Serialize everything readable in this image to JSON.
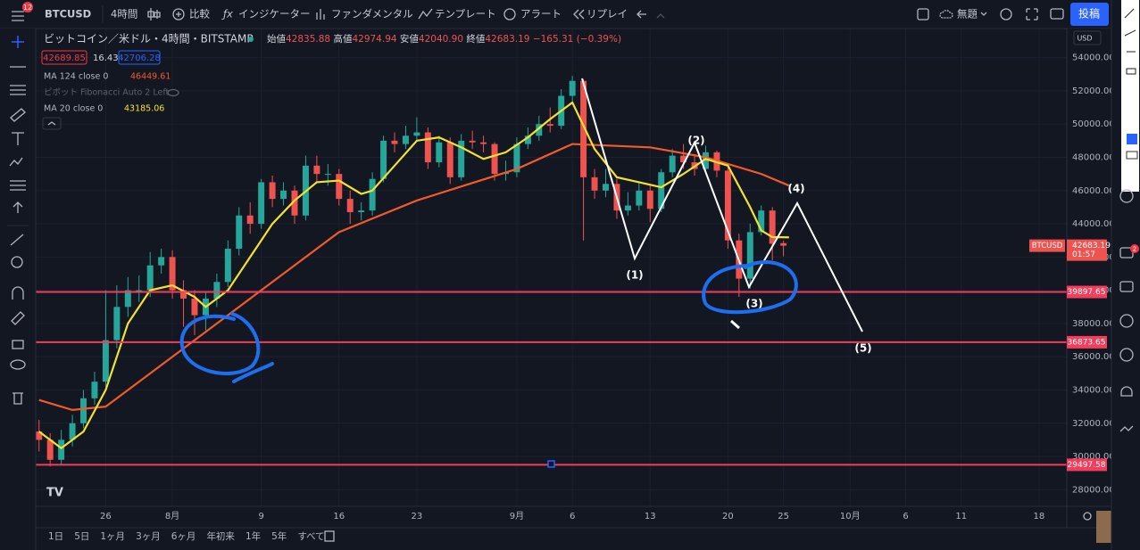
{
  "toolbar": {
    "badge": "12",
    "symbol": "BTCUSD",
    "interval": "4時間",
    "compare": "比較",
    "indicators": "インジケーター",
    "fundamentals": "ファンダメンタル",
    "templates": "テンプレート",
    "alert": "アラート",
    "replay": "リプレイ",
    "layout_name": "無題",
    "publish": "投稿"
  },
  "legend": {
    "title": "ビットコイン／米ドル・4時間・BITSTAMP",
    "ohlc": [
      {
        "label": "始値",
        "value": "42835.88"
      },
      {
        "label": "高値",
        "value": "42974.94"
      },
      {
        "label": "安値",
        "value": "42040.90"
      },
      {
        "label": "終値",
        "value": "42683.19"
      }
    ],
    "change": "−165.31 (−0.39%)",
    "bid": "42689.85",
    "spread": "16.43",
    "ask": "42706.28",
    "ma124_value": "46449.61",
    "pivot": "ピボット Fibonacci Auto 2 Left",
    "ma20_value": "43185.06"
  },
  "currency": "USD",
  "notification_badge": "2",
  "range_buttons": [
    "1日",
    "5日",
    "1ヶ月",
    "3ヶ月",
    "6ヶ月",
    "年初来",
    "1年",
    "5年",
    "すべて"
  ],
  "chart_data": {
    "type": "candlestick",
    "x": [
      20,
      21,
      22,
      23,
      24,
      25,
      26,
      27,
      28,
      29,
      30,
      31,
      32,
      33,
      34,
      35,
      36,
      37,
      38,
      39,
      40,
      41,
      42,
      43,
      44,
      45,
      46,
      47,
      48,
      49,
      50,
      51,
      52,
      53,
      54,
      55,
      56,
      57,
      58,
      59,
      60,
      61,
      62,
      63,
      64,
      65,
      66,
      67,
      68,
      69,
      70,
      71,
      72,
      73,
      74,
      75,
      76,
      77,
      78,
      79,
      80,
      81,
      82,
      83,
      84,
      85,
      86,
      87
    ],
    "open": [
      31500,
      31000,
      29800,
      31000,
      32000,
      33500,
      34500,
      37000,
      39000,
      40000,
      40000,
      41500,
      42000,
      40000,
      39500,
      38500,
      39500,
      40500,
      42500,
      44500,
      44000,
      46500,
      45500,
      46000,
      44500,
      47500,
      47000,
      47000,
      45500,
      44700,
      44800,
      46700,
      49000,
      48800,
      49300,
      49500,
      47700,
      48900,
      46800,
      49000,
      48900,
      48800,
      47000,
      47100,
      48800,
      49300,
      50000,
      49900,
      51700,
      52600,
      46800,
      46000,
      46400,
      44800,
      45100,
      46000,
      44900,
      47100,
      48100,
      47700,
      47300,
      48300,
      47200,
      43000,
      40700,
      43500,
      44800,
      42835.88
    ],
    "high": [
      32200,
      31400,
      31600,
      32500,
      34000,
      35100,
      40000,
      40300,
      40800,
      40900,
      42300,
      42500,
      42400,
      40600,
      40000,
      39900,
      41000,
      43000,
      45000,
      45300,
      46700,
      46900,
      46500,
      46300,
      48100,
      48100,
      47600,
      47300,
      46000,
      45300,
      47100,
      49300,
      49500,
      49900,
      50400,
      49800,
      49300,
      49200,
      49400,
      49600,
      49300,
      48900,
      47800,
      49200,
      49800,
      50500,
      51000,
      52100,
      52900,
      52700,
      47300,
      47300,
      46700,
      45900,
      46500,
      46300,
      47300,
      48500,
      48800,
      48200,
      48700,
      48400,
      47400,
      43400,
      44000,
      45100,
      45000,
      42974.94
    ],
    "low": [
      30300,
      29400,
      29500,
      30600,
      31700,
      33100,
      34200,
      36500,
      38400,
      39300,
      39600,
      41000,
      39500,
      37800,
      37300,
      37600,
      39000,
      40200,
      42100,
      43400,
      43700,
      45000,
      45100,
      44000,
      44200,
      46500,
      46300,
      45100,
      44000,
      44200,
      44500,
      46500,
      48300,
      48500,
      49000,
      47300,
      47400,
      46400,
      46600,
      48500,
      48300,
      46600,
      46600,
      46800,
      48500,
      49000,
      49500,
      49700,
      51400,
      43000,
      45500,
      45600,
      44300,
      44500,
      44800,
      44100,
      44700,
      46800,
      47300,
      46900,
      47000,
      46800,
      42500,
      39600,
      40100,
      43300,
      41800,
      42040.9
    ],
    "close": [
      31000,
      29800,
      31000,
      32000,
      33500,
      34500,
      37000,
      39000,
      40000,
      40000,
      41500,
      42000,
      40000,
      39500,
      38500,
      39500,
      40500,
      42500,
      44500,
      44000,
      46500,
      45500,
      46000,
      44500,
      47500,
      47000,
      47000,
      45500,
      44700,
      44800,
      46700,
      49000,
      48800,
      49300,
      49500,
      47700,
      48900,
      46800,
      49000,
      48900,
      48800,
      47000,
      47100,
      48800,
      49300,
      50000,
      49900,
      51700,
      52600,
      46800,
      46000,
      46400,
      44800,
      45100,
      46000,
      44900,
      47100,
      48100,
      47700,
      47300,
      48300,
      47200,
      43000,
      40700,
      43500,
      44800,
      42800,
      42683.19
    ],
    "up_color": "#26a69a",
    "down_color": "#ef5350",
    "series": [
      {
        "name": "MA 124 close 0",
        "color": "#f05a2c",
        "x": [
          20,
          23,
          26,
          32,
          40,
          47,
          54,
          63,
          68,
          75,
          80,
          85,
          87.5
        ],
        "values": [
          33400,
          32800,
          33000,
          36000,
          40000,
          43500,
          45400,
          47300,
          48800,
          48600,
          48000,
          47000,
          46300
        ]
      },
      {
        "name": "MA 20 close 0",
        "color": "#f2e12f",
        "x": [
          20,
          22,
          24,
          26,
          28,
          30,
          32,
          34,
          35,
          37,
          39,
          41,
          43,
          45,
          47,
          49,
          50,
          52,
          54,
          56,
          58,
          60,
          62,
          64,
          66,
          68,
          70,
          72,
          74,
          76,
          78,
          80,
          82,
          84,
          85,
          86,
          87.5
        ],
        "values": [
          31500,
          30500,
          31500,
          34000,
          38000,
          40000,
          40300,
          39600,
          39000,
          40000,
          42000,
          44000,
          45400,
          46500,
          46600,
          45800,
          46000,
          47500,
          49000,
          49200,
          48600,
          47900,
          48300,
          49200,
          50300,
          51300,
          48500,
          46800,
          46500,
          46200,
          47000,
          47900,
          47500,
          45000,
          43600,
          43200,
          43185
        ]
      }
    ],
    "xlim": [
      19.7,
      112.5
    ],
    "xticks": [
      26,
      {
        "value": 32,
        "label": "8月"
      },
      {
        "value": 40,
        "label": "9"
      },
      {
        "value": 47,
        "label": "16"
      },
      {
        "value": 54,
        "label": "23"
      },
      {
        "value": 63,
        "label": "9月"
      },
      {
        "value": 68,
        "label": "6"
      },
      {
        "value": 75,
        "label": "13"
      },
      {
        "value": 82,
        "label": "20"
      },
      {
        "value": 87,
        "label": "25"
      },
      {
        "value": 93,
        "label": "10月"
      },
      {
        "value": 98,
        "label": "6"
      },
      {
        "value": 103,
        "label": "11"
      },
      {
        "value": 110,
        "label": "18"
      }
    ],
    "ylim": [
      27000,
      55750
    ],
    "yticks": [
      {
        "value": 28000,
        "label": "28000.00"
      },
      {
        "value": 30000,
        "label": "30000.00"
      },
      {
        "value": 32000,
        "label": "32000.00"
      },
      {
        "value": 34000,
        "label": "34000.00"
      },
      {
        "value": 36000,
        "label": "36000.00"
      },
      {
        "value": 38000,
        "label": "38000.00"
      },
      {
        "value": 40000,
        "label": "40000.00"
      },
      {
        "value": 42000,
        "label": "42000.00"
      },
      {
        "value": 44000,
        "label": "44000.00"
      },
      {
        "value": 46000,
        "label": "46000.00"
      },
      {
        "value": 48000,
        "label": "48000.00"
      },
      {
        "value": 50000,
        "label": "50000.00"
      },
      {
        "value": 52000,
        "label": "52000.00"
      },
      {
        "value": 54000,
        "label": "54000.00"
      }
    ],
    "grid": true,
    "hlines": [
      39897.65,
      36873.65,
      29497.58
    ],
    "hline_color": "#f23d5c",
    "last_label": "BTCUSD",
    "last_price": 42683.19,
    "countdown": "01:57",
    "wave_labels": [
      "(1)",
      "(2)",
      "(3)",
      "(4)",
      "(5)"
    ]
  }
}
